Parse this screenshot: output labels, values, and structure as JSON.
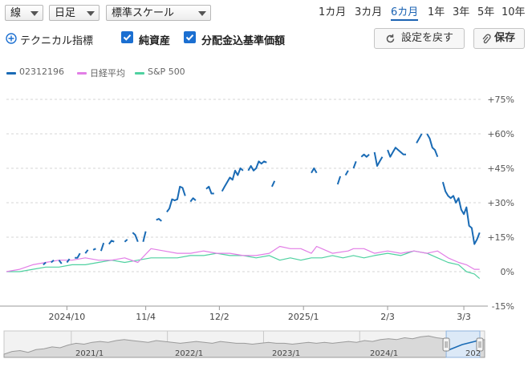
{
  "toolbar": {
    "chart_type": "線",
    "interval": "日足",
    "scale": "標準スケール",
    "periods": [
      "1カ月",
      "3カ月",
      "6カ月",
      "1年",
      "3年",
      "5年",
      "10年"
    ],
    "selected_period": "6カ月"
  },
  "options": {
    "technical_label": "テクニカル指標",
    "nav_label": "純資産",
    "nav_checked": true,
    "benchmark_label": "分配金込基準価額",
    "benchmark_checked": true,
    "reset_label": "設定を戻す",
    "save_label": "保存"
  },
  "colors": {
    "fund": "#1a6bb5",
    "nikkei": "#e27ee6",
    "sp500": "#4fd1a0",
    "accent": "#1b6fd1"
  },
  "icons": [
    "plus-circle-icon",
    "checkbox-checked-icon",
    "reset-icon",
    "paperclip-icon",
    "chevron-down-icon"
  ],
  "chart_data": {
    "type": "line",
    "series": [
      {
        "name": "02312196",
        "values": [
          [
            0,
            -0.5
          ],
          [
            4,
            -0.5
          ],
          [
            8,
            0.5
          ],
          [
            12,
            3
          ],
          [
            14,
            3
          ],
          [
            15,
            4
          ],
          [
            17,
            4
          ],
          [
            18,
            5
          ],
          [
            20,
            5
          ],
          [
            21,
            3.5
          ],
          [
            23,
            4
          ],
          [
            24,
            5.5
          ],
          [
            26,
            6
          ],
          [
            27,
            6
          ],
          [
            28,
            8
          ],
          [
            30,
            8
          ],
          [
            31,
            9.5
          ],
          [
            33,
            9.5
          ],
          [
            34,
            10
          ],
          [
            36,
            9
          ],
          [
            37,
            12.5
          ],
          [
            39,
            12
          ],
          [
            40,
            13.5
          ],
          [
            41,
            13
          ],
          [
            43,
            14.5
          ],
          [
            45,
            13
          ],
          [
            46,
            14
          ],
          [
            48,
            17
          ],
          [
            49,
            16
          ],
          [
            50,
            13
          ],
          [
            52,
            13
          ],
          [
            53,
            17.5
          ],
          [
            55,
            23
          ],
          [
            57,
            22.5
          ],
          [
            58,
            23
          ],
          [
            59,
            22
          ],
          [
            61,
            26
          ],
          [
            62,
            27.5
          ],
          [
            63,
            31.5
          ],
          [
            64,
            31
          ],
          [
            65,
            31.5
          ],
          [
            66,
            37
          ],
          [
            67,
            36.5
          ],
          [
            68,
            33
          ],
          [
            70,
            30.5
          ],
          [
            71,
            32
          ],
          [
            72,
            31
          ],
          [
            74,
            31
          ],
          [
            76,
            36
          ],
          [
            77,
            37
          ],
          [
            78,
            34
          ],
          [
            79,
            34
          ],
          [
            82,
            35
          ],
          [
            83,
            37
          ],
          [
            84,
            39
          ],
          [
            85,
            41
          ],
          [
            86,
            40
          ],
          [
            87,
            44
          ],
          [
            88,
            42
          ],
          [
            89,
            45
          ],
          [
            90,
            44
          ],
          [
            92,
            44
          ],
          [
            93,
            46
          ],
          [
            94,
            44
          ],
          [
            95,
            45
          ],
          [
            96,
            48
          ],
          [
            97,
            47
          ],
          [
            98,
            48
          ],
          [
            99,
            47.5
          ],
          [
            101,
            37
          ],
          [
            102,
            39.5
          ],
          [
            104,
            43
          ],
          [
            107,
            43
          ],
          [
            109,
            43
          ],
          [
            116,
            43
          ],
          [
            117,
            45
          ],
          [
            118,
            43
          ],
          [
            120,
            44
          ],
          [
            122,
            43.5
          ],
          [
            124,
            38
          ],
          [
            126,
            38
          ],
          [
            127,
            41.5
          ],
          [
            129,
            42
          ],
          [
            130,
            44
          ],
          [
            132,
            45
          ],
          [
            133,
            48
          ],
          [
            135,
            50
          ],
          [
            136,
            51
          ],
          [
            137,
            50
          ],
          [
            138,
            51
          ],
          [
            140,
            52
          ],
          [
            141,
            46
          ],
          [
            142,
            48
          ],
          [
            143,
            50
          ],
          [
            145,
            53
          ],
          [
            146,
            50
          ],
          [
            147,
            52
          ],
          [
            148,
            54
          ],
          [
            149,
            53
          ],
          [
            150,
            52
          ],
          [
            151,
            51
          ],
          [
            152,
            51
          ],
          [
            154,
            52
          ],
          [
            156,
            56
          ],
          [
            157,
            58
          ],
          [
            158,
            60
          ],
          [
            160,
            60
          ],
          [
            161,
            58
          ],
          [
            162,
            54
          ],
          [
            163,
            53
          ],
          [
            164,
            50
          ],
          [
            166,
            39
          ],
          [
            167,
            35
          ],
          [
            168,
            33
          ],
          [
            169,
            32
          ],
          [
            170,
            33
          ],
          [
            171,
            30
          ],
          [
            172,
            32
          ],
          [
            173,
            27
          ],
          [
            174,
            25
          ],
          [
            175,
            28
          ],
          [
            176,
            20
          ],
          [
            177,
            19
          ],
          [
            178,
            12
          ],
          [
            179,
            14
          ],
          [
            180,
            17
          ]
        ]
      },
      {
        "name": "日経平均",
        "values": [
          [
            0,
            0
          ],
          [
            5,
            1
          ],
          [
            10,
            3
          ],
          [
            15,
            4
          ],
          [
            20,
            5
          ],
          [
            25,
            5
          ],
          [
            30,
            6
          ],
          [
            35,
            5
          ],
          [
            40,
            5
          ],
          [
            45,
            6
          ],
          [
            50,
            4
          ],
          [
            55,
            10
          ],
          [
            60,
            9
          ],
          [
            65,
            8
          ],
          [
            70,
            8
          ],
          [
            75,
            9
          ],
          [
            80,
            8
          ],
          [
            85,
            8
          ],
          [
            90,
            7
          ],
          [
            95,
            7
          ],
          [
            100,
            8
          ],
          [
            104,
            11
          ],
          [
            108,
            10
          ],
          [
            112,
            10
          ],
          [
            116,
            8
          ],
          [
            118,
            11
          ],
          [
            120,
            10
          ],
          [
            124,
            8
          ],
          [
            130,
            9
          ],
          [
            132,
            10
          ],
          [
            136,
            10
          ],
          [
            140,
            8
          ],
          [
            145,
            9
          ],
          [
            150,
            8
          ],
          [
            155,
            9
          ],
          [
            160,
            8
          ],
          [
            164,
            9
          ],
          [
            168,
            6
          ],
          [
            172,
            4
          ],
          [
            175,
            3
          ],
          [
            178,
            1
          ],
          [
            180,
            1
          ]
        ]
      },
      {
        "name": "S&P 500",
        "values": [
          [
            0,
            0
          ],
          [
            5,
            0
          ],
          [
            10,
            1
          ],
          [
            15,
            2
          ],
          [
            20,
            2
          ],
          [
            25,
            3
          ],
          [
            30,
            3
          ],
          [
            35,
            4
          ],
          [
            40,
            5
          ],
          [
            45,
            4
          ],
          [
            50,
            5
          ],
          [
            55,
            6
          ],
          [
            60,
            6
          ],
          [
            65,
            6
          ],
          [
            70,
            7
          ],
          [
            75,
            7
          ],
          [
            80,
            8
          ],
          [
            85,
            7
          ],
          [
            90,
            7
          ],
          [
            95,
            6
          ],
          [
            100,
            7
          ],
          [
            104,
            5
          ],
          [
            108,
            6
          ],
          [
            112,
            5
          ],
          [
            116,
            6
          ],
          [
            120,
            6
          ],
          [
            124,
            7
          ],
          [
            128,
            6
          ],
          [
            132,
            7
          ],
          [
            136,
            6
          ],
          [
            140,
            7
          ],
          [
            145,
            8
          ],
          [
            150,
            7
          ],
          [
            155,
            9
          ],
          [
            160,
            8
          ],
          [
            164,
            6
          ],
          [
            168,
            4
          ],
          [
            172,
            3
          ],
          [
            175,
            0
          ],
          [
            178,
            -1
          ],
          [
            180,
            -3
          ]
        ]
      }
    ],
    "y_ticks": [
      "+75%",
      "+60%",
      "+45%",
      "+30%",
      "+15%",
      "0%",
      "-15%"
    ],
    "y_values": [
      75,
      60,
      45,
      30,
      15,
      0,
      -15
    ],
    "ylim": [
      -15,
      75
    ],
    "x_ticks": [
      {
        "label": "2024/10",
        "x": 23
      },
      {
        "label": "11/4",
        "x": 53
      },
      {
        "label": "12/2",
        "x": 81
      },
      {
        "label": "2025/1",
        "x": 113
      },
      {
        "label": "2/3",
        "x": 145
      },
      {
        "label": "3/3",
        "x": 174
      }
    ],
    "xlim": [
      0,
      181
    ],
    "grid": true,
    "legend_position": "top-left"
  },
  "navigator": {
    "labels": [
      "2021/1",
      "2022/1",
      "2023/1",
      "2024/1",
      "202"
    ],
    "history": [
      0,
      3,
      4,
      2,
      5,
      6,
      8,
      7,
      10,
      12,
      11,
      13,
      14,
      13,
      15,
      16,
      15,
      14,
      13,
      15,
      14,
      13,
      12,
      13,
      14,
      13,
      12,
      14,
      13,
      12,
      12,
      11,
      12,
      13,
      12,
      12,
      11,
      12,
      13,
      12,
      13,
      12,
      13,
      14,
      13,
      15,
      14,
      16,
      17,
      16,
      18,
      17,
      19,
      20,
      18,
      17,
      16,
      18,
      17,
      15,
      16
    ],
    "window_start": 0.92,
    "window_end": 0.99
  }
}
